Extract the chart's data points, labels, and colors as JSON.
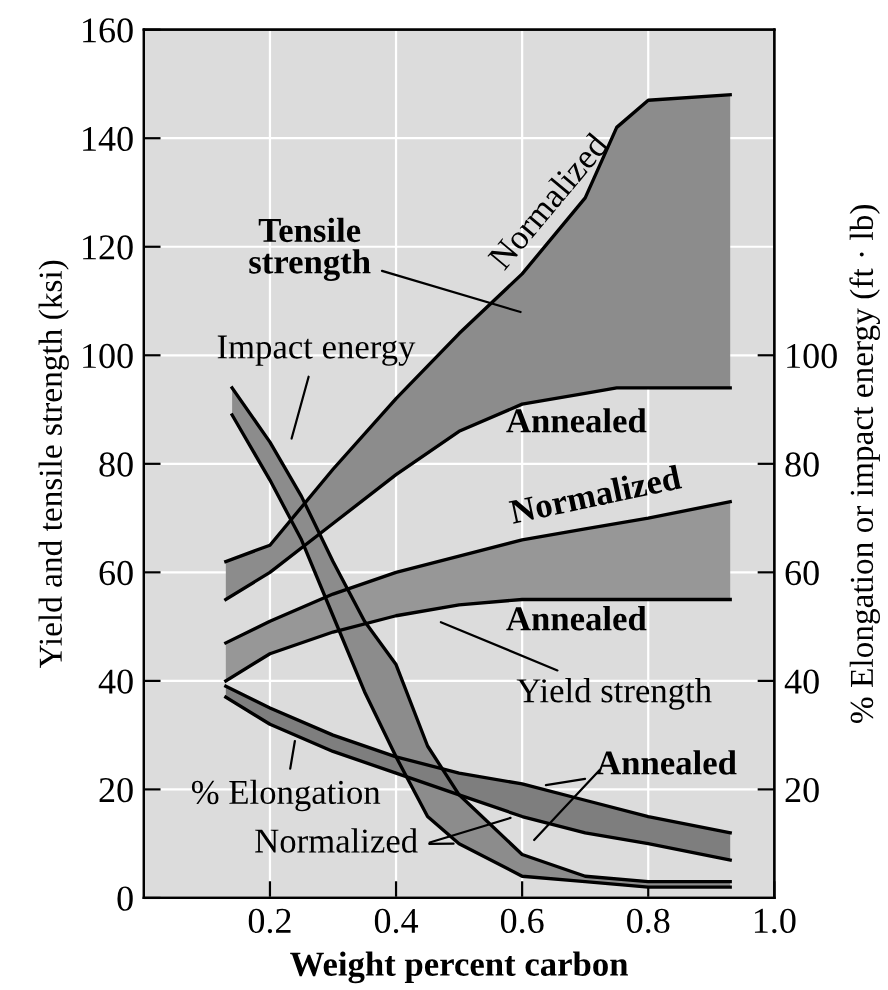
{
  "chart_data": {
    "type": "line",
    "xlabel": "Weight percent carbon",
    "ylabel": "Yield and tensile strength (ksi)",
    "y2label": "% Elongation or impact energy (ft · lb)",
    "xlim": [
      0,
      1.0
    ],
    "xticks": [
      0.2,
      0.4,
      0.6,
      0.8,
      {
        "value": 1.0,
        "label": "1.0"
      }
    ],
    "ylim": [
      0,
      160
    ],
    "yticks": [
      0,
      20,
      40,
      60,
      80,
      100,
      120,
      140,
      160
    ],
    "y2lim": [
      0,
      160
    ],
    "y2ticks": [
      20,
      40,
      60,
      80,
      100
    ],
    "grid": true,
    "series": [
      {
        "color": "#000000",
        "x": [
          0.13,
          0.2,
          0.3,
          0.4,
          0.5,
          0.6,
          0.7,
          0.75,
          0.8,
          0.93
        ],
        "values": [
          55,
          60,
          69,
          78,
          86,
          91,
          93,
          94,
          94,
          94
        ],
        "lower": [
          55,
          60,
          69,
          78,
          86,
          91,
          93,
          94,
          94,
          94
        ],
        "upper": [
          62,
          65,
          79,
          92,
          104,
          115,
          129,
          142,
          147,
          148
        ]
      },
      {
        "color": "#000000",
        "x": [
          0.13,
          0.2,
          0.3,
          0.4,
          0.5,
          0.6,
          0.7,
          0.75,
          0.8,
          0.93
        ],
        "values": [
          62,
          65,
          79,
          92,
          104,
          115,
          129,
          142,
          147,
          148
        ]
      },
      {
        "color": "#000000",
        "x": [
          0.13,
          0.2,
          0.3,
          0.4,
          0.5,
          0.6,
          0.7,
          0.8,
          0.93
        ],
        "values": [
          40,
          45,
          49,
          52,
          54,
          55,
          55,
          55,
          55
        ],
        "lower": [
          40,
          45,
          49,
          52,
          54,
          55,
          55,
          55,
          55
        ],
        "upper": [
          47,
          51,
          56,
          60,
          63,
          66,
          68,
          70,
          73
        ]
      },
      {
        "color": "#000000",
        "x": [
          0.13,
          0.2,
          0.3,
          0.4,
          0.5,
          0.6,
          0.7,
          0.8,
          0.93
        ],
        "values": [
          47,
          51,
          56,
          60,
          63,
          66,
          68,
          70,
          73
        ]
      },
      {
        "color": "#000000",
        "x": [
          0.14,
          0.2,
          0.25,
          0.3,
          0.35,
          0.4,
          0.45,
          0.5,
          0.6,
          0.7,
          0.8,
          0.93
        ],
        "values": [
          89,
          77,
          66,
          52,
          38,
          26,
          15,
          10,
          4,
          3,
          2,
          2
        ],
        "lower": [
          89,
          77,
          66,
          52,
          38,
          26,
          15,
          10,
          4,
          3,
          2,
          2
        ],
        "upper": [
          94,
          84,
          74,
          62,
          51,
          43,
          28,
          19,
          8,
          4,
          3,
          3
        ]
      },
      {
        "color": "#000000",
        "x": [
          0.14,
          0.2,
          0.25,
          0.3,
          0.35,
          0.4,
          0.45,
          0.5,
          0.6,
          0.7,
          0.8,
          0.93
        ],
        "values": [
          94,
          84,
          74,
          62,
          51,
          43,
          28,
          19,
          8,
          4,
          3,
          3
        ]
      },
      {
        "color": "#000000",
        "x": [
          0.13,
          0.2,
          0.3,
          0.4,
          0.5,
          0.6,
          0.7,
          0.8,
          0.93
        ],
        "values": [
          37,
          32,
          27,
          23,
          19,
          15,
          12,
          10,
          7
        ],
        "lower": [
          37,
          32,
          27,
          23,
          19,
          15,
          12,
          10,
          7
        ],
        "upper": [
          39,
          35,
          30,
          26,
          23,
          21,
          18,
          15,
          12
        ]
      },
      {
        "color": "#000000",
        "x": [
          0.13,
          0.2,
          0.3,
          0.4,
          0.5,
          0.6,
          0.7,
          0.8,
          0.93
        ],
        "values": [
          39,
          35,
          30,
          26,
          23,
          21,
          18,
          15,
          12
        ]
      }
    ],
    "annotations": [
      "Normalized",
      "Tensile\nstrength",
      "Impact energy",
      "Annealed",
      "Normalized",
      "Annealed",
      "Yield strength",
      "% Elongation",
      "Annealed",
      {
        "text": "Normalized",
        "x": 0.5,
        "y": 10
      }
    ]
  }
}
